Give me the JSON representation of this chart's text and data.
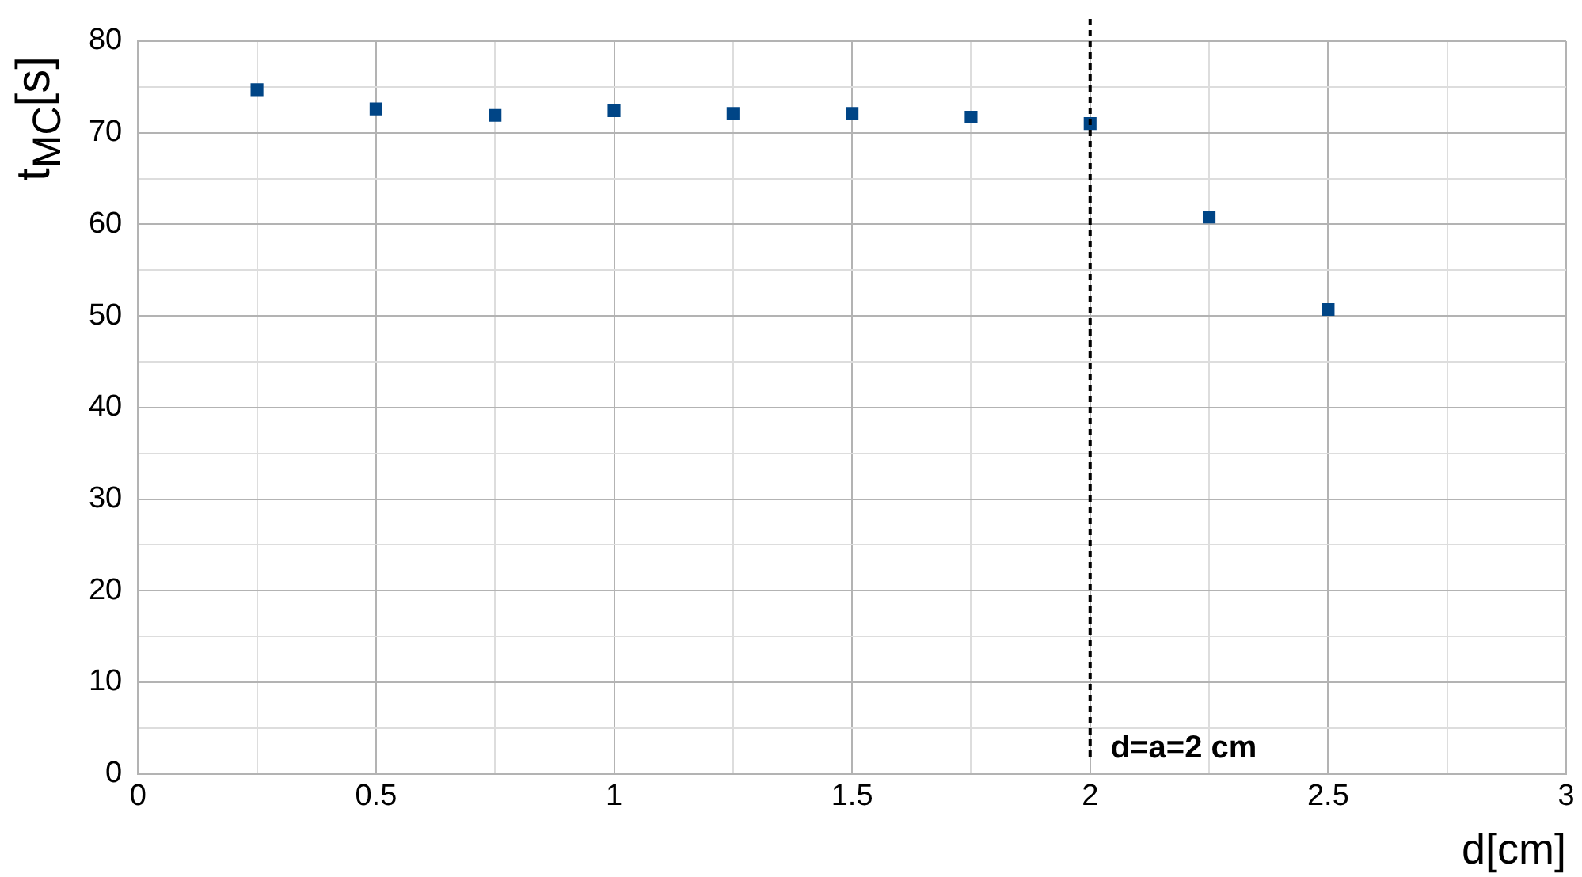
{
  "chart_data": {
    "type": "scatter",
    "xlabel": "d[cm]",
    "ylabel": "t$_{MC}$[s]",
    "x": [
      0.25,
      0.5,
      0.75,
      1,
      1.25,
      1.5,
      1.75,
      2,
      2.25,
      2.5
    ],
    "series": [
      {
        "color": "#004586",
        "values": [
          74.7,
          72.6,
          71.9,
          72.4,
          72.1,
          72.1,
          71.7,
          71.0,
          60.8,
          50.7
        ]
      }
    ],
    "xlim": [
      0,
      3
    ],
    "ylim": [
      0,
      80
    ],
    "xticks": [
      0,
      {
        "value": 0.25,
        "label": null
      },
      0.5,
      {
        "value": 0.75,
        "label": null
      },
      1,
      {
        "value": 1.25,
        "label": null
      },
      1.5,
      {
        "value": 1.75,
        "label": null
      },
      2,
      {
        "value": 2.25,
        "label": null
      },
      2.5,
      {
        "value": 2.75,
        "label": null
      },
      3
    ],
    "yticks": [
      0,
      {
        "value": 5,
        "label": null
      },
      10,
      {
        "value": 15,
        "label": null
      },
      20,
      {
        "value": 25,
        "label": null
      },
      30,
      {
        "value": 35,
        "label": null
      },
      40,
      {
        "value": 45,
        "label": null
      },
      50,
      {
        "value": 55,
        "label": null
      },
      60,
      {
        "value": 65,
        "label": null
      },
      70,
      {
        "value": 75,
        "label": null
      },
      80
    ],
    "ref_lines": [
      {
        "axis": "x",
        "value": 2,
        "label": "d=a=2 cm",
        "color": "#000000",
        "line_style": "dashed"
      }
    ],
    "grid": true,
    "legend": false,
    "marker": "square"
  }
}
